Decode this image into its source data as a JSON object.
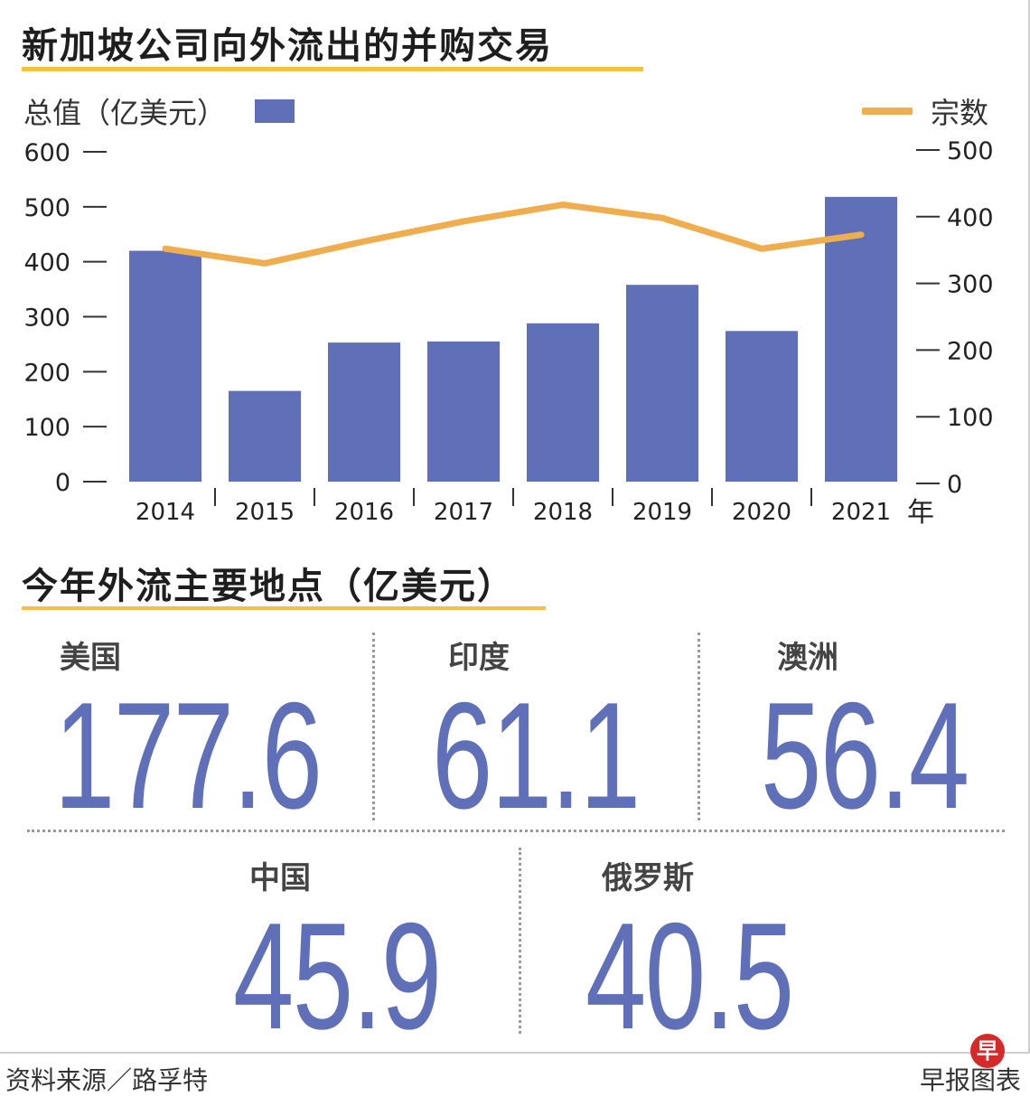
{
  "title": "新加坡公司向外流出的并购交易",
  "subtitle": "今年外流主要地点（亿美元）",
  "legend": {
    "bars_label": "总值（亿美元）",
    "line_label": "宗数"
  },
  "colors": {
    "bar": "#5f6fb8",
    "line": "#f0ad4e",
    "accent_rule": "#f3c244",
    "value_text": "#5f6fb8"
  },
  "chart_data": {
    "type": "bar",
    "categories": [
      "2014",
      "2015",
      "2016",
      "2017",
      "2018",
      "2019",
      "2020",
      "2021"
    ],
    "x_unit": "年",
    "series": [
      {
        "name": "总值（亿美元）",
        "type": "bar",
        "axis": "left",
        "values": [
          420,
          165,
          253,
          255,
          288,
          358,
          274,
          518
        ]
      },
      {
        "name": "宗数",
        "type": "line",
        "axis": "right",
        "values": [
          352,
          330,
          363,
          393,
          418,
          398,
          352,
          373
        ]
      }
    ],
    "y_left": {
      "ylim": [
        0,
        600
      ],
      "ticks": [
        "0",
        "100",
        "200",
        "300",
        "400",
        "500",
        "600"
      ]
    },
    "y_right": {
      "ylim": [
        0,
        500
      ],
      "ticks": [
        "0",
        "100",
        "200",
        "300",
        "400",
        "500"
      ]
    },
    "grid": false,
    "legend_position": "top"
  },
  "destinations": [
    {
      "name": "美国",
      "value": "177.6"
    },
    {
      "name": "印度",
      "value": "61.1"
    },
    {
      "name": "澳洲",
      "value": "56.4"
    },
    {
      "name": "中国",
      "value": "45.9"
    },
    {
      "name": "俄罗斯",
      "value": "40.5"
    }
  ],
  "footer": {
    "source": "资料来源／路孚特",
    "credit": "早报图表",
    "logo_char": "早"
  }
}
